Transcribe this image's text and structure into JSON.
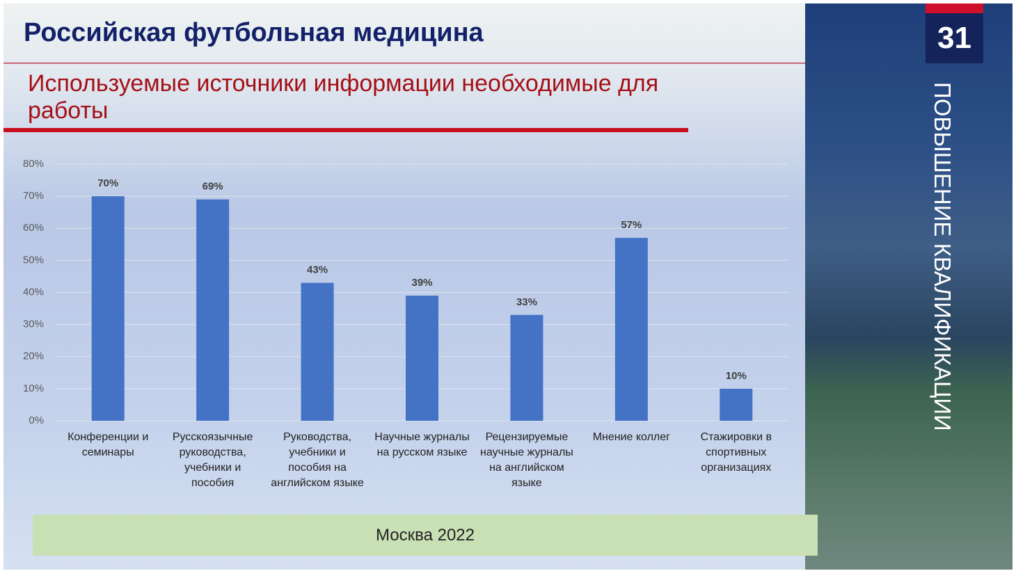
{
  "header": {
    "title": "Российская футбольная медицина",
    "page_number": "31",
    "side_text": "ПОВЫШЕНИЕ КВАЛИФИКАЦИИ"
  },
  "footer": {
    "text": "Москва 2022"
  },
  "chart_data": {
    "type": "bar",
    "title": "Используемые источники информации необходимые для работы",
    "categories": [
      "Конференции и семинары",
      "Русскоязычные руководства, учебники и пособия",
      "Руководства, учебники и пособия на английском языке",
      "Научные журналы на русском языке",
      "Рецензируемые научные журналы на английском языке",
      "Мнение коллег",
      "Стажировки в спортивных организациях"
    ],
    "values": [
      70,
      69,
      43,
      39,
      33,
      57,
      10
    ],
    "value_labels": [
      "70%",
      "69%",
      "43%",
      "39%",
      "33%",
      "57%",
      "10%"
    ],
    "color": "#4472c4",
    "ylim": [
      0,
      80
    ],
    "yticks": [
      {
        "value": 0,
        "label": "0%"
      },
      {
        "value": 10,
        "label": "10%"
      },
      {
        "value": 20,
        "label": "20%"
      },
      {
        "value": 30,
        "label": "30%"
      },
      {
        "value": 40,
        "label": "40%"
      },
      {
        "value": 50,
        "label": "50%"
      },
      {
        "value": 60,
        "label": "60%"
      },
      {
        "value": 70,
        "label": "70%"
      },
      {
        "value": 80,
        "label": "80%"
      }
    ],
    "grid": true
  }
}
